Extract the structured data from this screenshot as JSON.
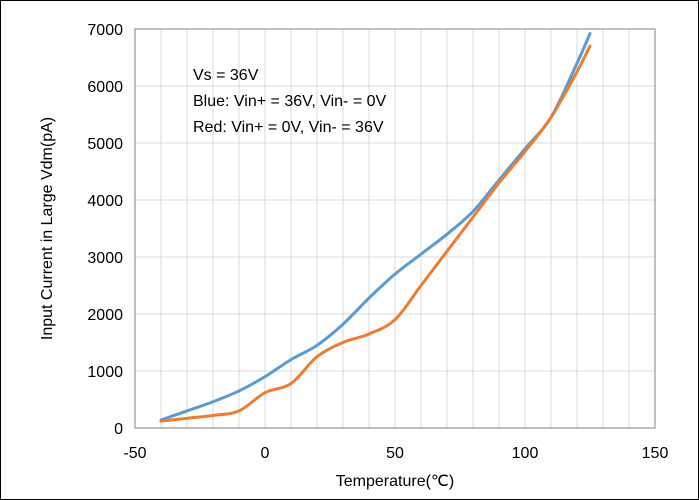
{
  "chart_data": {
    "type": "line",
    "xlabel": "Temperature(℃)",
    "ylabel": "Input Current in Large Vdm(pA)",
    "xlim": [
      -50,
      150
    ],
    "ylim": [
      0,
      7000
    ],
    "xticks": [
      -50,
      0,
      50,
      100,
      150
    ],
    "yticks": [
      0,
      1000,
      2000,
      3000,
      4000,
      5000,
      6000,
      7000
    ],
    "grid": true,
    "annotations": [
      "Vs = 36V",
      "Blue: Vin+ = 36V, Vin- = 0V",
      "Red: Vin+ = 0V, Vin- = 36V"
    ],
    "series": [
      {
        "color": "#5B9BD5",
        "x": [
          -40,
          -30,
          -20,
          -10,
          0,
          10,
          20,
          30,
          40,
          50,
          60,
          70,
          80,
          90,
          100,
          110,
          120,
          125
        ],
        "y": [
          140,
          300,
          460,
          650,
          900,
          1200,
          1450,
          1820,
          2280,
          2700,
          3050,
          3400,
          3800,
          4350,
          4900,
          5450,
          6400,
          6920
        ]
      },
      {
        "color": "#ED7D31",
        "x": [
          -40,
          -30,
          -20,
          -10,
          0,
          10,
          20,
          30,
          40,
          50,
          60,
          70,
          80,
          90,
          100,
          110,
          120,
          125
        ],
        "y": [
          120,
          170,
          220,
          300,
          620,
          780,
          1250,
          1500,
          1650,
          1900,
          2500,
          3100,
          3700,
          4300,
          4850,
          5450,
          6250,
          6700
        ]
      }
    ]
  }
}
